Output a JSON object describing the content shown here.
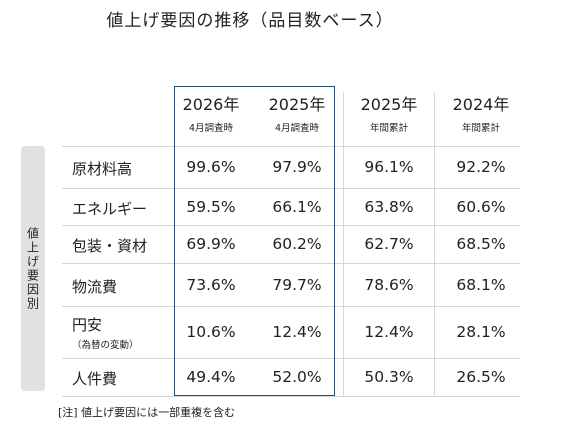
{
  "chart_data": {
    "type": "table",
    "title": "値上げ要因の推移（品目数ベース）",
    "row_group_label": "値上げ要因別",
    "columns": [
      {
        "year": "2026年",
        "sub": "4月調査時"
      },
      {
        "year": "2025年",
        "sub": "4月調査時"
      },
      {
        "year": "2025年",
        "sub": "年間累計"
      },
      {
        "year": "2024年",
        "sub": "年間累計"
      }
    ],
    "rows": [
      {
        "label": "原材料高",
        "note": "",
        "values": [
          "99.6%",
          "97.9%",
          "96.1%",
          "92.2%"
        ]
      },
      {
        "label": "エネルギー",
        "note": "",
        "values": [
          "59.5%",
          "66.1%",
          "63.8%",
          "60.6%"
        ]
      },
      {
        "label": "包装・資材",
        "note": "",
        "values": [
          "69.9%",
          "60.2%",
          "62.7%",
          "68.5%"
        ]
      },
      {
        "label": "物流費",
        "note": "",
        "values": [
          "73.6%",
          "79.7%",
          "78.6%",
          "68.1%"
        ]
      },
      {
        "label": "円安",
        "note": "（為替の変動）",
        "values": [
          "10.6%",
          "12.4%",
          "12.4%",
          "28.1%"
        ]
      },
      {
        "label": "人件費",
        "note": "",
        "values": [
          "49.4%",
          "52.0%",
          "50.3%",
          "26.5%"
        ]
      }
    ],
    "highlighted_columns": [
      0,
      1
    ],
    "footnote": "[注]  値上げ要因には一部重複を含む"
  },
  "colors": {
    "highlight_border": "#2a4f72",
    "side_label_bg": "#dfe1e3",
    "rule_lines": "#d6d6d6"
  }
}
